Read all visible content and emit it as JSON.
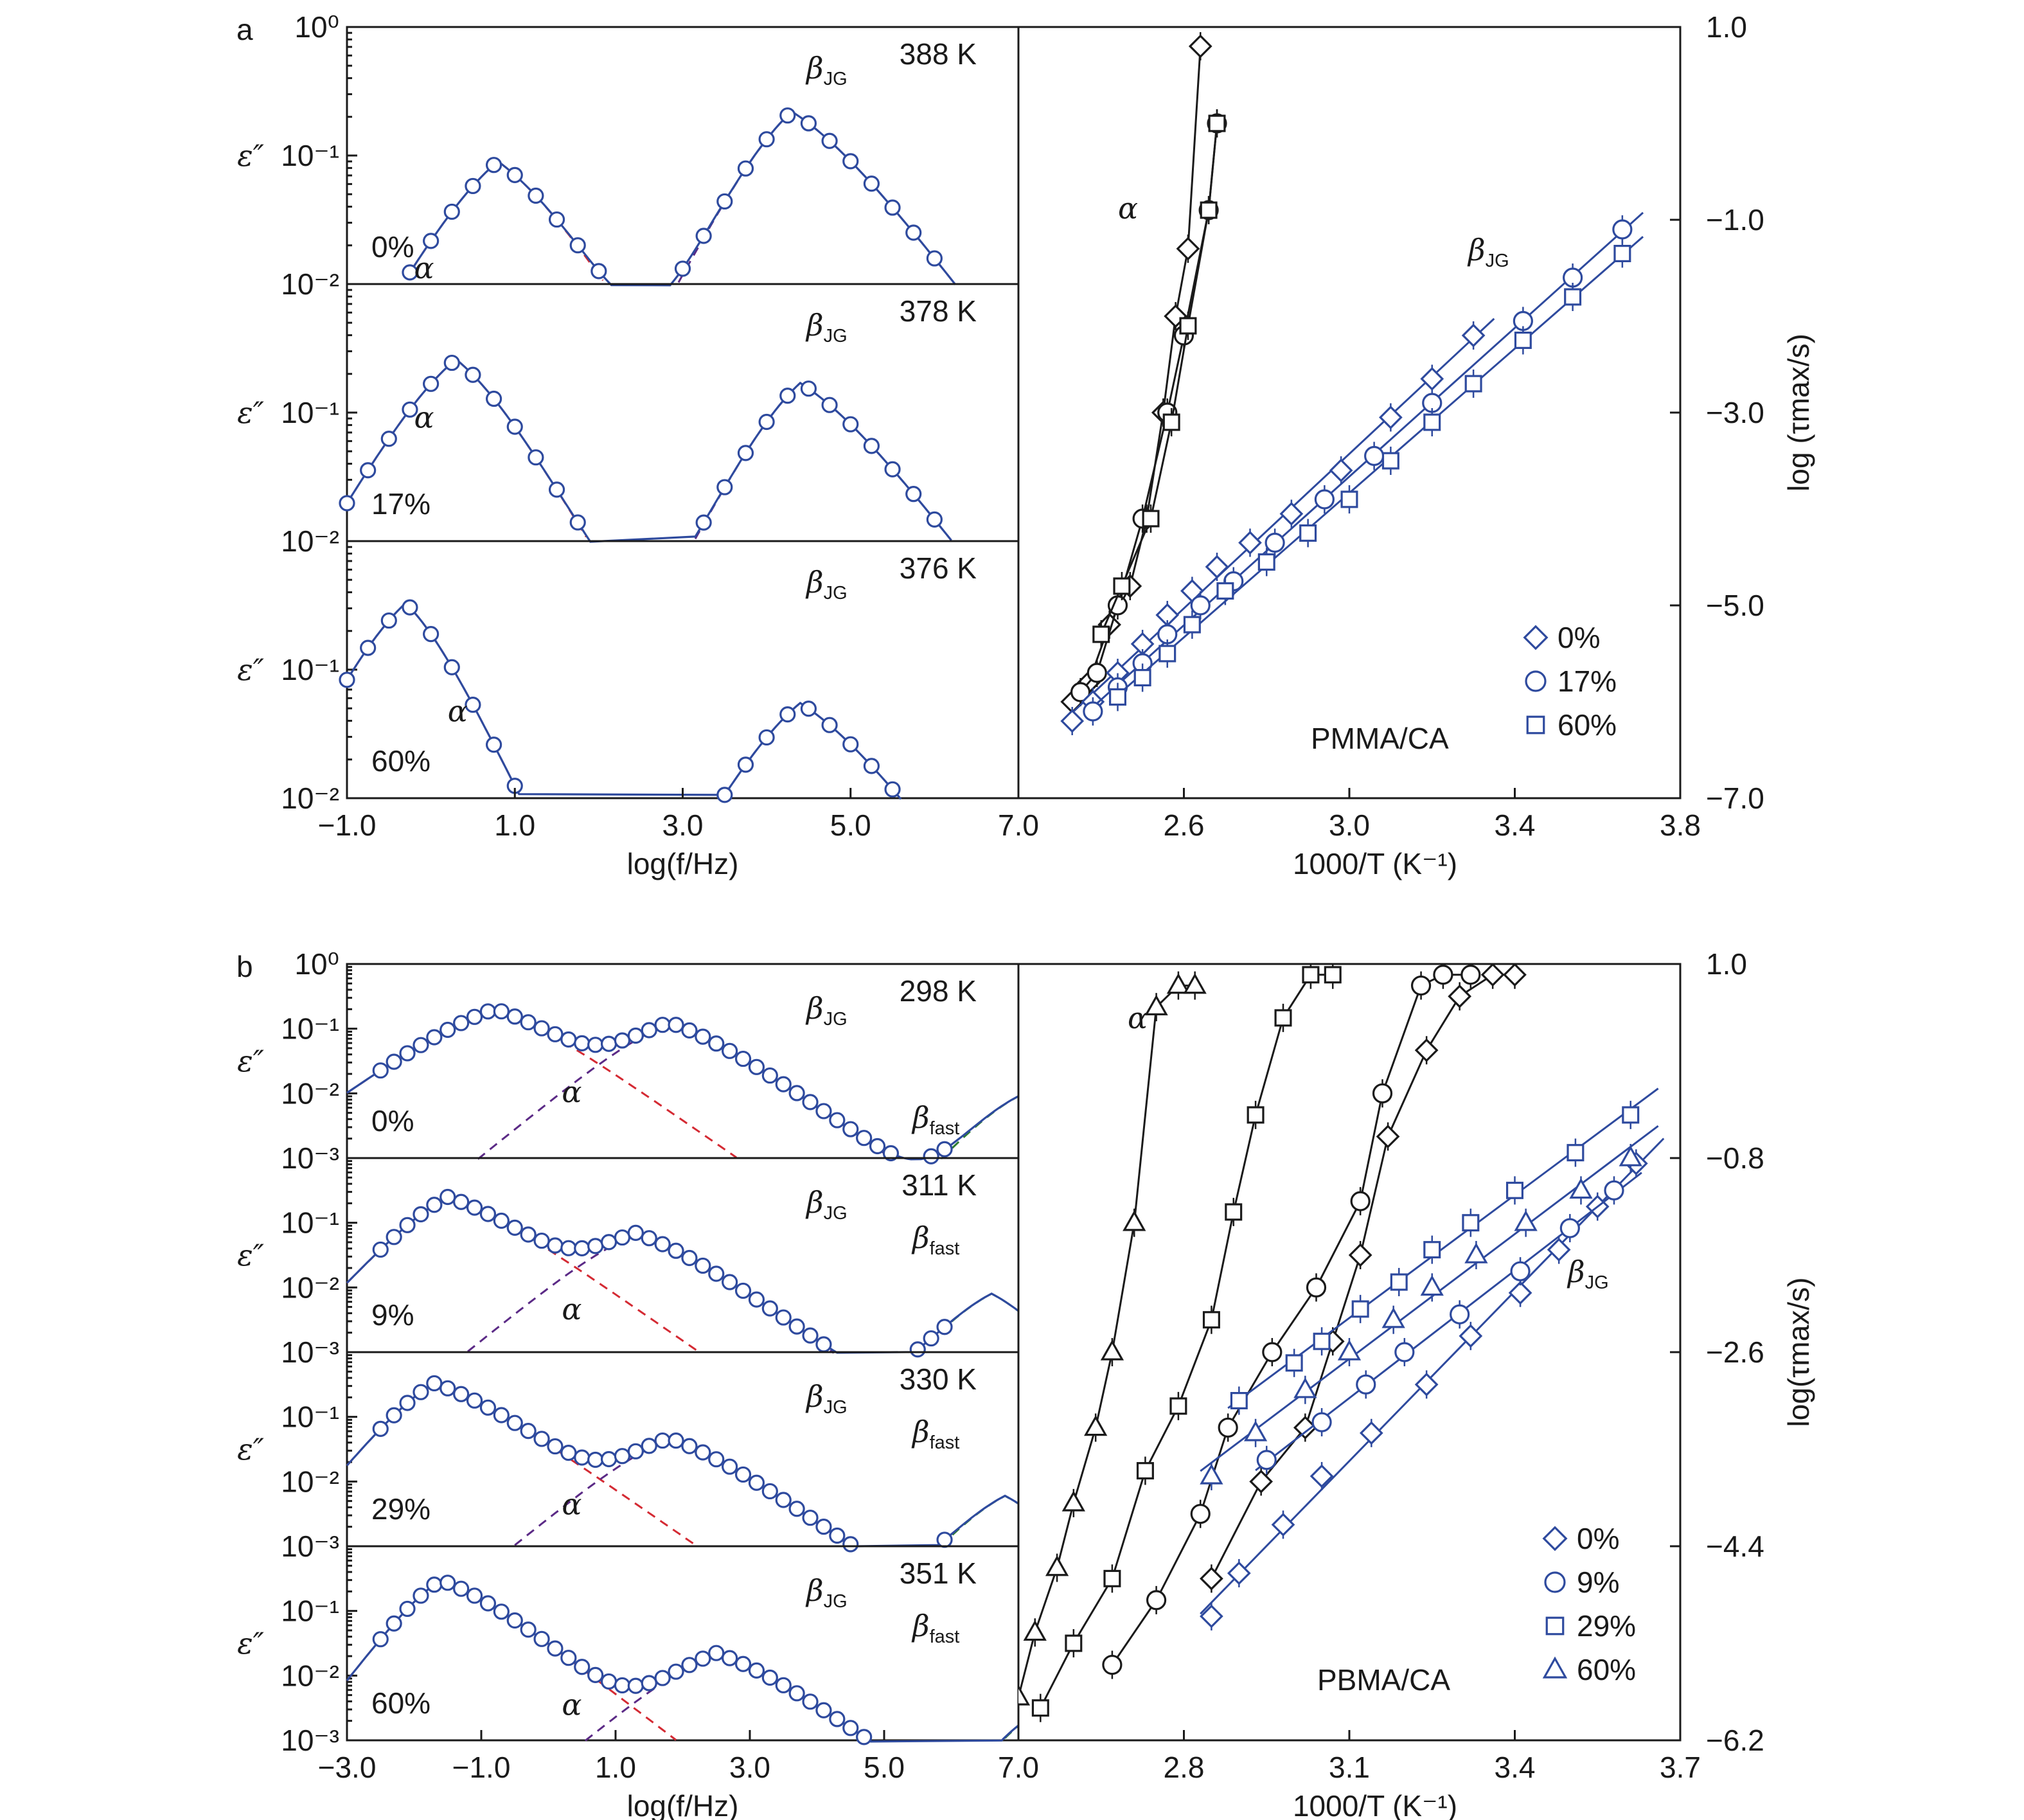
{
  "colors": {
    "axis": "#1a1a1a",
    "blue": "#2e4a9e",
    "red": "#d42a33",
    "purple": "#5b2a86",
    "green": "#2f7d32",
    "black": "#1a1a1a"
  },
  "panel_labels": {
    "a": "a",
    "b": "b"
  },
  "chart_data": [
    {
      "id": "a-spectra",
      "type": "line",
      "xlabel": "log(f/Hz)",
      "ylabel": "ε″",
      "xlim": [
        -1.0,
        7.0
      ],
      "xticks": [
        "−1.0",
        "1.0",
        "3.0",
        "5.0",
        "7.0"
      ],
      "ylim_log10": [
        -2,
        0
      ],
      "yticks": [
        "10⁰",
        "10⁻¹",
        "10⁻²"
      ],
      "log_y": true,
      "subplots": [
        {
          "composition": "0%",
          "temperature": "388 K",
          "alpha": {
            "label": "α",
            "peak_x": 0.8,
            "peak_y": 0.09,
            "slope_low": 0.45,
            "slope_high": 0.4
          },
          "beta_jg": {
            "label": "βJG",
            "peak_x": 4.3,
            "peak_y": 0.22,
            "slope_low": 0.5,
            "slope_high": 0.35
          },
          "data_x_range": [
            -1.0,
            6.5
          ],
          "fit_x_range": [
            -1.0,
            7.0
          ]
        },
        {
          "composition": "17%",
          "temperature": "378 K",
          "alpha": {
            "label": "α",
            "peak_x": 0.3,
            "peak_y": 0.26,
            "slope_low": 0.45,
            "slope_high": 0.45
          },
          "beta_jg": {
            "label": "βJG",
            "peak_x": 4.4,
            "peak_y": 0.17,
            "slope_low": 0.5,
            "slope_high": 0.35
          },
          "data_x_range": [
            -1.0,
            6.5
          ],
          "fit_x_range": [
            -1.0,
            7.0
          ]
        },
        {
          "composition": "60%",
          "temperature": "376 K",
          "alpha": {
            "label": "α",
            "peak_x": -0.3,
            "peak_y": 0.33,
            "slope_low": 0.5,
            "slope_high": 0.55
          },
          "beta_jg": {
            "label": "βJG",
            "peak_x": 4.4,
            "peak_y": 0.055,
            "slope_low": 0.45,
            "slope_high": 0.35
          },
          "data_x_range": [
            -1.0,
            6.5
          ],
          "fit_x_range": [
            -1.0,
            7.0
          ]
        }
      ]
    },
    {
      "id": "a-relaxation-map",
      "type": "scatter",
      "xlabel": "1000/T (K⁻¹)",
      "ylabel": "log (τmax/s)",
      "xlim": [
        2.2,
        3.8
      ],
      "xticks": [
        "2.6",
        "3.0",
        "3.4",
        "3.8"
      ],
      "ylim": [
        -7.0,
        1.0
      ],
      "yticks": [
        "1.0",
        "−1.0",
        "−3.0",
        "−5.0",
        "−7.0"
      ],
      "annotations": [
        "α",
        "βJG",
        "PMMA/CA"
      ],
      "legend": {
        "position": "bottom-right",
        "entries": [
          {
            "marker": "diamond",
            "label": "0%"
          },
          {
            "marker": "circle",
            "label": "17%"
          },
          {
            "marker": "square",
            "label": "60%"
          }
        ]
      },
      "alpha_series": [
        {
          "name": "0%",
          "marker": "diamond",
          "x": [
            2.33,
            2.37,
            2.42,
            2.47,
            2.51,
            2.55,
            2.58,
            2.61,
            2.64
          ],
          "y": [
            -6.0,
            -5.8,
            -5.2,
            -4.8,
            -4.1,
            -3.0,
            -2.0,
            -1.3,
            0.8
          ]
        },
        {
          "name": "17%",
          "marker": "circle",
          "x": [
            2.35,
            2.39,
            2.44,
            2.5,
            2.56,
            2.6,
            2.66,
            2.68
          ],
          "y": [
            -5.9,
            -5.7,
            -5.0,
            -4.1,
            -3.0,
            -2.2,
            -0.9,
            0.0
          ]
        },
        {
          "name": "60%",
          "marker": "square",
          "x": [
            2.4,
            2.45,
            2.52,
            2.57,
            2.61,
            2.66,
            2.68
          ],
          "y": [
            -5.3,
            -4.8,
            -4.1,
            -3.1,
            -2.1,
            -0.9,
            0.0
          ]
        }
      ],
      "beta_series": [
        {
          "name": "0%",
          "marker": "diamond",
          "x": [
            2.33,
            2.38,
            2.44,
            2.5,
            2.56,
            2.62,
            2.68,
            2.76,
            2.86,
            2.98,
            3.1,
            3.2,
            3.3
          ],
          "y": [
            -6.2,
            -6.0,
            -5.7,
            -5.4,
            -5.1,
            -4.85,
            -4.6,
            -4.35,
            -4.05,
            -3.6,
            -3.05,
            -2.65,
            -2.2
          ]
        },
        {
          "name": "17%",
          "marker": "circle",
          "x": [
            2.38,
            2.44,
            2.5,
            2.56,
            2.64,
            2.72,
            2.82,
            2.94,
            3.06,
            3.2,
            3.42,
            3.54,
            3.66
          ],
          "y": [
            -6.1,
            -5.85,
            -5.6,
            -5.3,
            -5.0,
            -4.75,
            -4.35,
            -3.9,
            -3.45,
            -2.9,
            -2.05,
            -1.6,
            -1.1
          ]
        },
        {
          "name": "60%",
          "marker": "square",
          "x": [
            2.44,
            2.5,
            2.56,
            2.62,
            2.7,
            2.8,
            2.9,
            3.0,
            3.1,
            3.2,
            3.3,
            3.42,
            3.54,
            3.66
          ],
          "y": [
            -5.95,
            -5.75,
            -5.5,
            -5.2,
            -4.85,
            -4.55,
            -4.25,
            -3.9,
            -3.5,
            -3.1,
            -2.7,
            -2.25,
            -1.8,
            -1.35
          ]
        }
      ]
    },
    {
      "id": "b-spectra",
      "type": "line",
      "xlabel": "log(f/Hz)",
      "ylabel": "ε″",
      "xlim": [
        -3.0,
        7.0
      ],
      "xticks": [
        "−3.0",
        "−1.0",
        "1.0",
        "3.0",
        "5.0",
        "7.0"
      ],
      "ylim_log10": [
        -3,
        0
      ],
      "yticks": [
        "10⁰",
        "10⁻¹",
        "10⁻²",
        "10⁻³"
      ],
      "log_y": true,
      "subplots": [
        {
          "composition": "0%",
          "temperature": "298 K",
          "alpha": {
            "label": "α",
            "peak_x": -0.8,
            "peak_y": 0.2,
            "slope_low": 0.3,
            "slope_high": 0.3
          },
          "beta_jg": {
            "label": "βJG",
            "peak_x": 1.8,
            "peak_y": 0.12,
            "slope_low": 0.35,
            "slope_high": 0.3
          },
          "beta_fast": {
            "label": "βfast",
            "peak_x": 7.0,
            "peak_y": 0.009,
            "slope_low": 0.45,
            "slope_high": 0.45
          },
          "data_x_range": [
            -2.5,
            6.0
          ],
          "fit_x_range": [
            -3.0,
            7.0
          ]
        },
        {
          "composition": "9%",
          "temperature": "311 K",
          "alpha": {
            "label": "α",
            "peak_x": -1.5,
            "peak_y": 0.25,
            "slope_low": 0.45,
            "slope_high": 0.3
          },
          "beta_jg": {
            "label": "βJG",
            "peak_x": 1.3,
            "peak_y": 0.065,
            "slope_low": 0.35,
            "slope_high": 0.3
          },
          "beta_fast": {
            "label": "βfast",
            "peak_x": 6.6,
            "peak_y": 0.008,
            "slope_low": 0.45,
            "slope_high": 0.45
          },
          "data_x_range": [
            -2.5,
            6.0
          ],
          "fit_x_range": [
            -3.0,
            7.0
          ]
        },
        {
          "composition": "29%",
          "temperature": "330 K",
          "alpha": {
            "label": "α",
            "peak_x": -1.7,
            "peak_y": 0.33,
            "slope_low": 0.5,
            "slope_high": 0.3
          },
          "beta_jg": {
            "label": "βJG",
            "peak_x": 1.8,
            "peak_y": 0.045,
            "slope_low": 0.35,
            "slope_high": 0.3
          },
          "beta_fast": {
            "label": "βfast",
            "peak_x": 6.8,
            "peak_y": 0.006,
            "slope_low": 0.45,
            "slope_high": 0.45
          },
          "data_x_range": [
            -2.5,
            6.0
          ],
          "fit_x_range": [
            -3.0,
            7.0
          ]
        },
        {
          "composition": "60%",
          "temperature": "351 K",
          "alpha": {
            "label": "α",
            "peak_x": -1.6,
            "peak_y": 0.3,
            "slope_low": 0.55,
            "slope_high": 0.33
          },
          "beta_jg": {
            "label": "βJG",
            "peak_x": 2.5,
            "peak_y": 0.022,
            "slope_low": 0.35,
            "slope_high": 0.3
          },
          "beta_fast": {
            "label": "βfast",
            "peak_x": 7.1,
            "peak_y": 0.002,
            "slope_low": 0.6,
            "slope_high": 0.6
          },
          "data_x_range": [
            -2.5,
            6.0
          ],
          "fit_x_range": [
            -3.0,
            7.0
          ]
        }
      ]
    },
    {
      "id": "b-relaxation-map",
      "type": "scatter",
      "xlabel": "1000/T (K⁻¹)",
      "ylabel": "log(τmax/s)",
      "xlim": [
        2.5,
        3.7
      ],
      "xticks": [
        "2.8",
        "3.1",
        "3.4",
        "3.7"
      ],
      "ylim": [
        -6.2,
        1.0
      ],
      "yticks": [
        "1.0",
        "−0.8",
        "−2.6",
        "−4.4",
        "−6.2"
      ],
      "annotations": [
        "α",
        "βJG",
        "PBMA/CA"
      ],
      "legend": {
        "position": "bottom-right",
        "entries": [
          {
            "marker": "diamond",
            "label": "0%"
          },
          {
            "marker": "circle",
            "label": "9%"
          },
          {
            "marker": "square",
            "label": "29%"
          },
          {
            "marker": "triangle",
            "label": "60%"
          }
        ]
      },
      "alpha_series": [
        {
          "name": "60%",
          "marker": "triangle",
          "x": [
            2.5,
            2.53,
            2.57,
            2.6,
            2.64,
            2.67,
            2.71,
            2.75,
            2.79,
            2.82
          ],
          "y": [
            -5.8,
            -5.2,
            -4.6,
            -4.0,
            -3.3,
            -2.6,
            -1.4,
            0.6,
            0.8,
            0.8
          ]
        },
        {
          "name": "29%",
          "marker": "square",
          "x": [
            2.54,
            2.6,
            2.67,
            2.73,
            2.79,
            2.85,
            2.89,
            2.93,
            2.98,
            3.03,
            3.07
          ],
          "y": [
            -5.9,
            -5.3,
            -4.7,
            -3.7,
            -3.1,
            -2.3,
            -1.3,
            -0.4,
            0.5,
            0.9,
            0.9
          ]
        },
        {
          "name": "9%",
          "marker": "circle",
          "x": [
            2.67,
            2.75,
            2.83,
            2.88,
            2.96,
            3.04,
            3.12,
            3.16,
            3.23,
            3.27,
            3.32
          ],
          "y": [
            -5.5,
            -4.9,
            -4.1,
            -3.3,
            -2.6,
            -2.0,
            -1.2,
            -0.2,
            0.8,
            0.9,
            0.9
          ]
        },
        {
          "name": "0%",
          "marker": "diamond",
          "x": [
            2.85,
            2.94,
            3.02,
            3.07,
            3.12,
            3.17,
            3.24,
            3.3,
            3.36,
            3.4
          ],
          "y": [
            -4.7,
            -3.8,
            -3.3,
            -2.5,
            -1.7,
            -0.6,
            0.2,
            0.7,
            0.9,
            0.9
          ]
        }
      ],
      "beta_series": [
        {
          "name": "0%",
          "marker": "diamond",
          "x": [
            2.85,
            2.9,
            2.98,
            3.05,
            3.14,
            3.24,
            3.32,
            3.41,
            3.48,
            3.55,
            3.62
          ],
          "y": [
            -5.05,
            -4.65,
            -4.2,
            -3.75,
            -3.35,
            -2.9,
            -2.45,
            -2.05,
            -1.65,
            -1.25,
            -0.85
          ]
        },
        {
          "name": "9%",
          "marker": "circle",
          "x": [
            2.95,
            3.05,
            3.13,
            3.2,
            3.3,
            3.41,
            3.5,
            3.58
          ],
          "y": [
            -3.6,
            -3.25,
            -2.9,
            -2.6,
            -2.25,
            -1.85,
            -1.45,
            -1.1
          ]
        },
        {
          "name": "29%",
          "marker": "square",
          "x": [
            2.9,
            3.0,
            3.05,
            3.12,
            3.19,
            3.25,
            3.32,
            3.4,
            3.51,
            3.61
          ],
          "y": [
            -3.05,
            -2.7,
            -2.5,
            -2.2,
            -1.95,
            -1.65,
            -1.4,
            -1.1,
            -0.75,
            -0.4
          ]
        },
        {
          "name": "60%",
          "marker": "triangle",
          "x": [
            2.85,
            2.93,
            3.02,
            3.1,
            3.18,
            3.25,
            3.33,
            3.42,
            3.52,
            3.61
          ],
          "y": [
            -3.75,
            -3.35,
            -2.95,
            -2.6,
            -2.3,
            -2.0,
            -1.7,
            -1.4,
            -1.1,
            -0.8
          ]
        }
      ]
    }
  ]
}
